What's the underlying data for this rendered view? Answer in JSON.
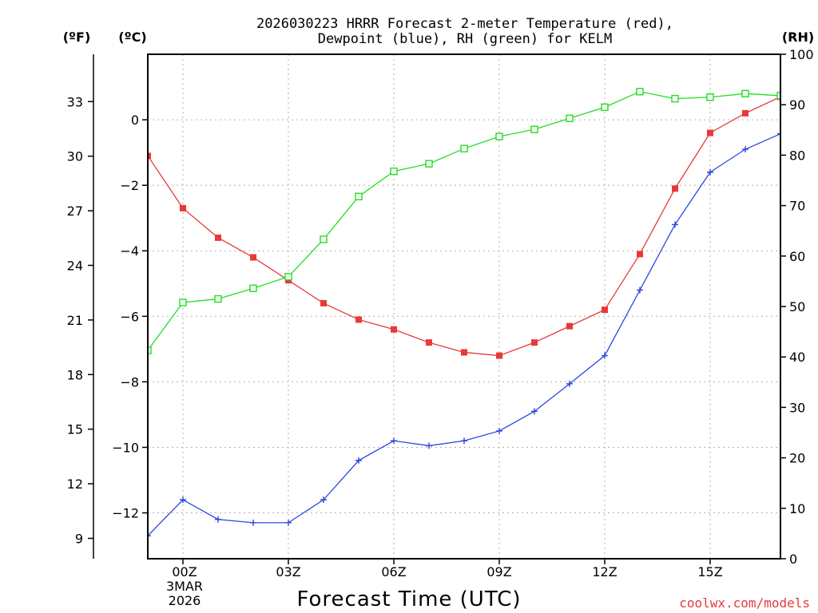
{
  "chart_data": {
    "type": "line",
    "title_line1": "2026030223 HRRR Forecast 2-meter Temperature (red),",
    "title_line2": "Dewpoint (blue), RH (green) for KELM",
    "xlabel": "Forecast Time (UTC)",
    "left_unit_f": "(ºF)",
    "left_unit_c": "(ºC)",
    "right_unit": "(RH)",
    "watermark": "coolwx.com/models",
    "x_start_label": [
      "00Z",
      "3MAR",
      "2026"
    ],
    "x_ticks": [
      {
        "hour": 0,
        "label": "00Z"
      },
      {
        "hour": 3,
        "label": "03Z"
      },
      {
        "hour": 6,
        "label": "06Z"
      },
      {
        "hour": 9,
        "label": "09Z"
      },
      {
        "hour": 12,
        "label": "12Z"
      },
      {
        "hour": 15,
        "label": "15Z"
      }
    ],
    "xlim_hours": [
      -1,
      17
    ],
    "ylim_c": [
      -13.4,
      2.0
    ],
    "y_ticks_c": [
      "0",
      "−2",
      "−4",
      "−6",
      "−8",
      "−10",
      "−12"
    ],
    "y_ticks_f": [
      "33",
      "30",
      "27",
      "24",
      "21",
      "18",
      "15",
      "12",
      "9"
    ],
    "ylim_rh": [
      0,
      100
    ],
    "y_ticks_rh": [
      "0",
      "10",
      "20",
      "30",
      "40",
      "50",
      "60",
      "70",
      "80",
      "90",
      "100"
    ],
    "hours": [
      -1,
      0,
      1,
      2,
      3,
      4,
      5,
      6,
      7,
      8,
      9,
      10,
      11,
      12,
      13,
      14,
      15,
      16,
      17
    ],
    "series": [
      {
        "name": "Temperature",
        "color": "#e8393a",
        "marker": "filled-square",
        "values": [
          -1.1,
          -2.7,
          -3.6,
          -4.2,
          -4.9,
          -5.6,
          -6.1,
          -6.4,
          -6.8,
          -7.1,
          -7.2,
          -6.8,
          -6.3,
          -5.8,
          -4.1,
          -2.1,
          -0.4,
          0.2,
          0.7
        ]
      },
      {
        "name": "Dewpoint",
        "color": "#2b47e0",
        "marker": "plus",
        "values": [
          -12.7,
          -11.6,
          -12.2,
          -12.3,
          -12.3,
          -11.6,
          -10.4,
          -9.8,
          -9.95,
          -9.8,
          -9.5,
          -8.9,
          -8.06,
          -7.2,
          -5.2,
          -3.2,
          -1.6,
          -0.9,
          -0.43
        ]
      },
      {
        "name": "RH",
        "color": "#22dd22",
        "marker": "open-square",
        "axis": "rh",
        "values": [
          41.3,
          50.8,
          51.5,
          53.6,
          55.9,
          63.3,
          71.8,
          76.8,
          78.3,
          81.3,
          83.7,
          85.1,
          87.3,
          89.5,
          92.6,
          91.2,
          91.5,
          92.2,
          91.8
        ]
      }
    ]
  }
}
